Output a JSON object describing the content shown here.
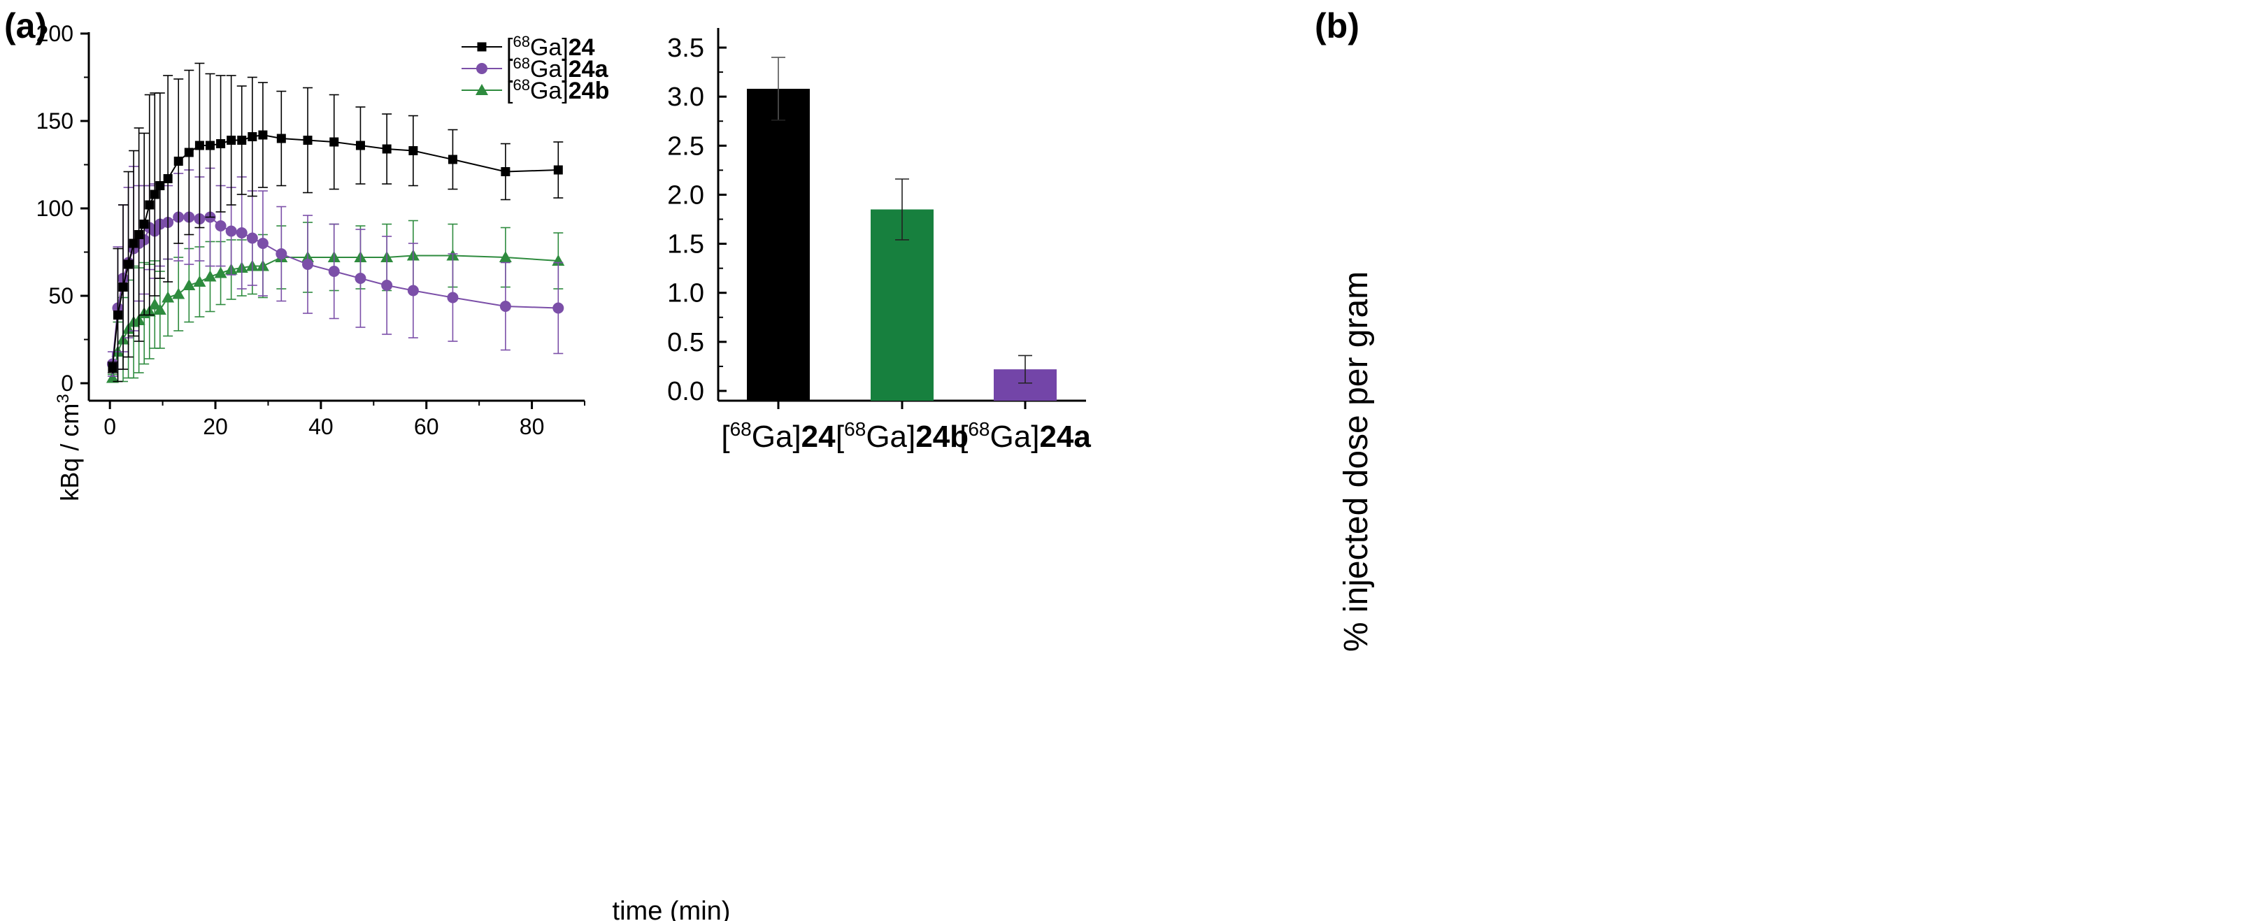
{
  "chart_data": [
    {
      "panel_label": "(a)",
      "type": "line",
      "xlabel": "time (min)",
      "ylabel_main": "kBq / cm",
      "ylabel_sup": "3",
      "xlim": [
        -4,
        90
      ],
      "ylim": [
        -10,
        200
      ],
      "xticks": [
        0,
        20,
        40,
        60,
        80
      ],
      "yticks": [
        0,
        50,
        100,
        150,
        200
      ],
      "grid": false,
      "legend_position": "top-right",
      "series": [
        {
          "name": "[68Ga]24",
          "legend_prefix": "[",
          "legend_sup": "68",
          "legend_mid": "Ga]",
          "legend_bold": "24",
          "color": "#000000",
          "marker": "square",
          "points": [
            [
              0.5,
              9,
              3
            ],
            [
              1.5,
              39,
              38
            ],
            [
              2.5,
              55,
              47
            ],
            [
              3.5,
              68,
              53
            ],
            [
              4.5,
              80,
              53
            ],
            [
              5.5,
              85,
              61
            ],
            [
              6.5,
              91,
              52
            ],
            [
              7.5,
              102,
              63
            ],
            [
              8.5,
              108,
              58
            ],
            [
              9.5,
              113,
              53
            ],
            [
              11,
              117,
              59
            ],
            [
              13,
              127,
              47
            ],
            [
              15,
              132,
              47
            ],
            [
              17,
              136,
              47
            ],
            [
              19,
              136,
              41
            ],
            [
              21,
              137,
              39
            ],
            [
              23,
              139,
              37
            ],
            [
              25,
              139,
              31
            ],
            [
              27,
              141,
              34
            ],
            [
              29,
              142,
              30
            ],
            [
              32.5,
              140,
              27
            ],
            [
              37.5,
              139,
              30
            ],
            [
              42.5,
              138,
              27
            ],
            [
              47.5,
              136,
              22
            ],
            [
              52.5,
              134,
              20
            ],
            [
              57.5,
              133,
              20
            ],
            [
              65,
              128,
              17
            ],
            [
              75,
              121,
              16
            ],
            [
              85,
              122,
              16
            ]
          ]
        },
        {
          "name": "[68Ga]24a",
          "legend_prefix": "[",
          "legend_sup": "68",
          "legend_mid": "Ga]",
          "legend_bold": "24a",
          "color": "#7b4fa8",
          "marker": "circle",
          "points": [
            [
              0.5,
              11,
              7
            ],
            [
              1.5,
              43,
              35
            ],
            [
              2.5,
              60,
              42
            ],
            [
              3.5,
              69,
              43
            ],
            [
              4.5,
              77,
              47
            ],
            [
              5.5,
              80,
              33
            ],
            [
              6.5,
              82,
              31
            ],
            [
              7.5,
              89,
              24
            ],
            [
              8.5,
              87,
              27
            ],
            [
              9.5,
              91,
              24
            ],
            [
              11,
              92,
              21
            ],
            [
              13,
              95,
              25
            ],
            [
              15,
              95,
              27
            ],
            [
              17,
              94,
              24
            ],
            [
              19,
              95,
              28
            ],
            [
              21,
              90,
              23
            ],
            [
              23,
              87,
              25
            ],
            [
              25,
              86,
              32
            ],
            [
              27,
              83,
              27
            ],
            [
              29,
              80,
              30
            ],
            [
              32.5,
              74,
              27
            ],
            [
              37.5,
              68,
              28
            ],
            [
              42.5,
              64,
              27
            ],
            [
              47.5,
              60,
              28
            ],
            [
              52.5,
              56,
              28
            ],
            [
              57.5,
              53,
              27
            ],
            [
              65,
              49,
              25
            ],
            [
              75,
              44,
              25
            ],
            [
              85,
              43,
              26
            ]
          ]
        },
        {
          "name": "[68Ga]24b",
          "legend_prefix": "[",
          "legend_sup": "68",
          "legend_mid": "Ga]",
          "legend_bold": "24b",
          "color": "#2e8b3e",
          "marker": "triangle",
          "points": [
            [
              0.5,
              3,
              2
            ],
            [
              1.5,
              18,
              17
            ],
            [
              2.5,
              25,
              24
            ],
            [
              3.5,
              31,
              28
            ],
            [
              4.5,
              35,
              32
            ],
            [
              5.5,
              36,
              30
            ],
            [
              6.5,
              40,
              29
            ],
            [
              7.5,
              41,
              27
            ],
            [
              8.5,
              45,
              25
            ],
            [
              9.5,
              42,
              22
            ],
            [
              11,
              49,
              22
            ],
            [
              13,
              51,
              21
            ],
            [
              15,
              56,
              21
            ],
            [
              17,
              58,
              20
            ],
            [
              19,
              61,
              20
            ],
            [
              21,
              63,
              18
            ],
            [
              23,
              65,
              17
            ],
            [
              25,
              66,
              16
            ],
            [
              27,
              67,
              16
            ],
            [
              29,
              67,
              18
            ],
            [
              32.5,
              72,
              18
            ],
            [
              37.5,
              72,
              20
            ],
            [
              42.5,
              72,
              19
            ],
            [
              47.5,
              72,
              18
            ],
            [
              52.5,
              72,
              19
            ],
            [
              57.5,
              73,
              20
            ],
            [
              65,
              73,
              18
            ],
            [
              75,
              72,
              17
            ],
            [
              85,
              70,
              16
            ]
          ]
        }
      ]
    },
    {
      "panel_label": "(b)",
      "type": "bar",
      "ylabel": "% injected dose per gram",
      "ylim": [
        -0.1,
        3.7
      ],
      "yticks": [
        0.0,
        0.5,
        1.0,
        1.5,
        2.0,
        2.5,
        3.0,
        3.5
      ],
      "grid": false,
      "categories": [
        {
          "prefix": "[",
          "sup": "68",
          "mid": "Ga]",
          "bold": "24"
        },
        {
          "prefix": "[",
          "sup": "68",
          "mid": "Ga]",
          "bold": "24b"
        },
        {
          "prefix": "[",
          "sup": "68",
          "mid": "Ga]",
          "bold": "24a"
        }
      ],
      "values": [
        3.08,
        1.85,
        0.22
      ],
      "errors": [
        0.32,
        0.31,
        0.14
      ],
      "colors": [
        "#000000",
        "#17803e",
        "#7345a8"
      ]
    }
  ]
}
